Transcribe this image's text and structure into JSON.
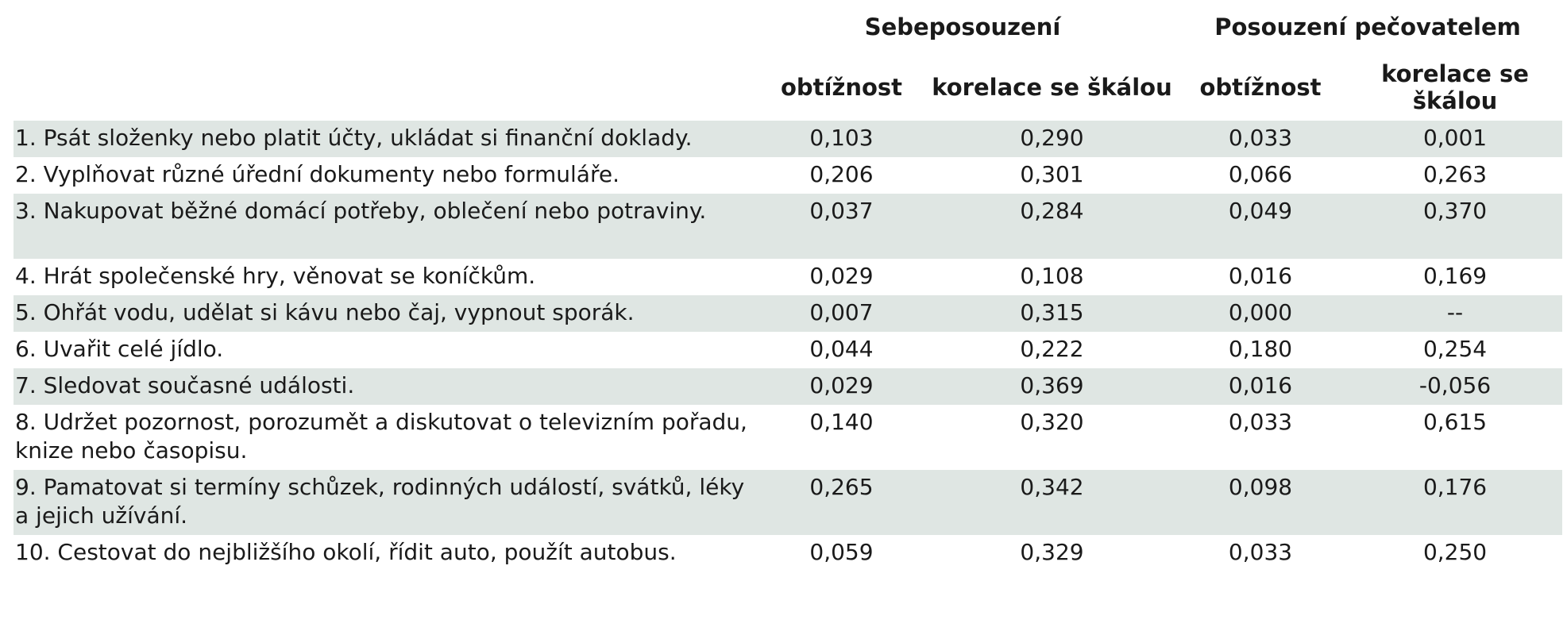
{
  "table": {
    "header": {
      "group_self": "Sebeposouzení",
      "group_caregiver": "Posouzení pečovatelem",
      "col_difficulty_self": "obtížnost",
      "col_correlation_self": "korelace se škálou",
      "col_difficulty_caregiver": "obtížnost",
      "col_correlation_caregiver": "korelace se škálou"
    },
    "rows": [
      {
        "item": "1. Psát složenky nebo platit účty, ukládat si finanční doklady.",
        "self_difficulty": "0,103",
        "self_correlation": "0,290",
        "caregiver_difficulty": "0,033",
        "caregiver_correlation": "0,001"
      },
      {
        "item": "2. Vyplňovat různé úřední dokumenty nebo formuláře.",
        "self_difficulty": "0,206",
        "self_correlation": "0,301",
        "caregiver_difficulty": "0,066",
        "caregiver_correlation": "0,263"
      },
      {
        "item": "3. Nakupovat běžné domácí potřeby, oblečení nebo potraviny.",
        "self_difficulty": "0,037",
        "self_correlation": "0,284",
        "caregiver_difficulty": "0,049",
        "caregiver_correlation": "0,370"
      },
      {
        "item": "4. Hrát společenské hry, věnovat se koníčkům.",
        "self_difficulty": "0,029",
        "self_correlation": "0,108",
        "caregiver_difficulty": "0,016",
        "caregiver_correlation": "0,169"
      },
      {
        "item": "5. Ohřát vodu, udělat si kávu nebo čaj, vypnout sporák.",
        "self_difficulty": "0,007",
        "self_correlation": "0,315",
        "caregiver_difficulty": "0,000",
        "caregiver_correlation": "--"
      },
      {
        "item": "6. Uvařit celé jídlo.",
        "self_difficulty": "0,044",
        "self_correlation": "0,222",
        "caregiver_difficulty": "0,180",
        "caregiver_correlation": "0,254"
      },
      {
        "item": "7. Sledovat současné události.",
        "self_difficulty": "0,029",
        "self_correlation": "0,369",
        "caregiver_difficulty": "0,016",
        "caregiver_correlation": "-0,056"
      },
      {
        "item": "8. Udržet pozornost, porozumět a diskutovat o televizním pořadu, knize nebo časopisu.",
        "self_difficulty": "0,140",
        "self_correlation": "0,320",
        "caregiver_difficulty": "0,033",
        "caregiver_correlation": "0,615"
      },
      {
        "item": "9. Pamatovat si termíny schůzek, rodinných událostí, svátků, léky a jejich užívání.",
        "self_difficulty": "0,265",
        "self_correlation": "0,342",
        "caregiver_difficulty": "0,098",
        "caregiver_correlation": "0,176"
      },
      {
        "item": "10. Cestovat do nejbližšího okolí, řídit auto, použít autobus.",
        "self_difficulty": "0,059",
        "self_correlation": "0,329",
        "caregiver_difficulty": "0,033",
        "caregiver_correlation": "0,250"
      }
    ]
  }
}
